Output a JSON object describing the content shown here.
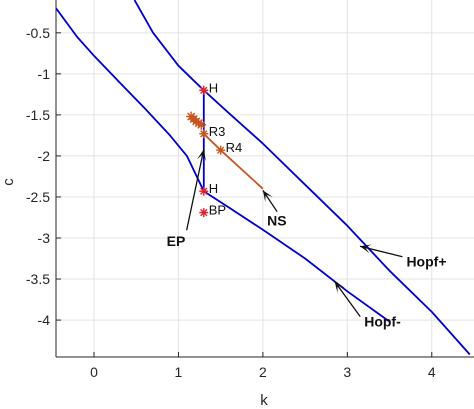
{
  "chart_data": {
    "type": "line",
    "title": "",
    "xlabel": "k",
    "ylabel": "c",
    "xlim": [
      -0.45,
      4.5
    ],
    "ylim": [
      -4.45,
      -0.1
    ],
    "grid": true,
    "x_ticks": [
      0,
      1,
      2,
      3,
      4
    ],
    "x_tick_labels": [
      "0",
      "1",
      "2",
      "3",
      "4"
    ],
    "y_ticks": [
      -0.5,
      -1,
      -1.5,
      -2,
      -2.5,
      -3,
      -3.5,
      -4
    ],
    "y_tick_labels": [
      "-0.5",
      "-1",
      "-1.5",
      "-2",
      "-2.5",
      "-3",
      "-3.5",
      "-4"
    ],
    "colors": {
      "hopf": "#0000cc",
      "ns": "#c8551e",
      "marker": "#e0202a",
      "grid": "#e3e3e3",
      "axes": "#262626"
    },
    "series": [
      {
        "label_text": "Hopf+",
        "kind": "curve",
        "points": [
          [
            0.48,
            -0.1
          ],
          [
            0.7,
            -0.5
          ],
          [
            1.0,
            -0.9
          ],
          [
            1.3,
            -1.2
          ],
          [
            1.6,
            -1.48
          ],
          [
            2.0,
            -1.85
          ],
          [
            2.5,
            -2.35
          ],
          [
            3.0,
            -2.85
          ],
          [
            3.5,
            -3.4
          ],
          [
            4.0,
            -3.9
          ],
          [
            4.45,
            -4.42
          ]
        ]
      },
      {
        "label_text": "Hopf-",
        "kind": "curve",
        "points": [
          [
            -0.45,
            -0.2
          ],
          [
            -0.2,
            -0.55
          ],
          [
            0.0,
            -0.78
          ],
          [
            0.3,
            -1.1
          ],
          [
            0.6,
            -1.42
          ],
          [
            0.9,
            -1.75
          ],
          [
            1.1,
            -2.0
          ],
          [
            1.3,
            -2.43
          ],
          [
            1.6,
            -2.63
          ],
          [
            2.0,
            -2.9
          ],
          [
            2.5,
            -3.25
          ],
          [
            3.0,
            -3.65
          ],
          [
            3.5,
            -4.02
          ]
        ]
      },
      {
        "label_text": "EP",
        "kind": "segment",
        "points": [
          [
            1.3,
            -1.2
          ],
          [
            1.3,
            -2.43
          ]
        ]
      },
      {
        "label_text": "NS",
        "kind": "segment",
        "points": [
          [
            1.3,
            -1.73
          ],
          [
            1.5,
            -1.93
          ],
          [
            2.0,
            -2.4
          ]
        ]
      }
    ],
    "markers": [
      {
        "k": 1.3,
        "c": -1.2,
        "label": "H"
      },
      {
        "k": 1.3,
        "c": -2.43,
        "label": "H"
      },
      {
        "k": 1.3,
        "c": -2.69,
        "label": "BP"
      },
      {
        "k": 1.3,
        "c": -1.73,
        "label": "R3"
      },
      {
        "k": 1.5,
        "c": -1.93,
        "label": "R4"
      }
    ],
    "orange_stars": [
      [
        1.15,
        -1.52
      ],
      [
        1.18,
        -1.55
      ],
      [
        1.21,
        -1.58
      ],
      [
        1.24,
        -1.6
      ],
      [
        1.27,
        -1.62
      ]
    ],
    "annotations": [
      {
        "text": "Hopf+",
        "arrow_to": [
          3.15,
          -3.1
        ],
        "text_at": [
          3.7,
          -3.35
        ]
      },
      {
        "text": "Hopf-",
        "arrow_to": [
          2.85,
          -3.53
        ],
        "text_at": [
          3.2,
          -4.08
        ]
      },
      {
        "text": "EP",
        "arrow_to": [
          1.3,
          -1.92
        ],
        "text_at": [
          0.86,
          -3.1
        ]
      },
      {
        "text": "NS",
        "arrow_to": [
          2.0,
          -2.42
        ],
        "text_at": [
          2.05,
          -2.85
        ]
      }
    ]
  }
}
